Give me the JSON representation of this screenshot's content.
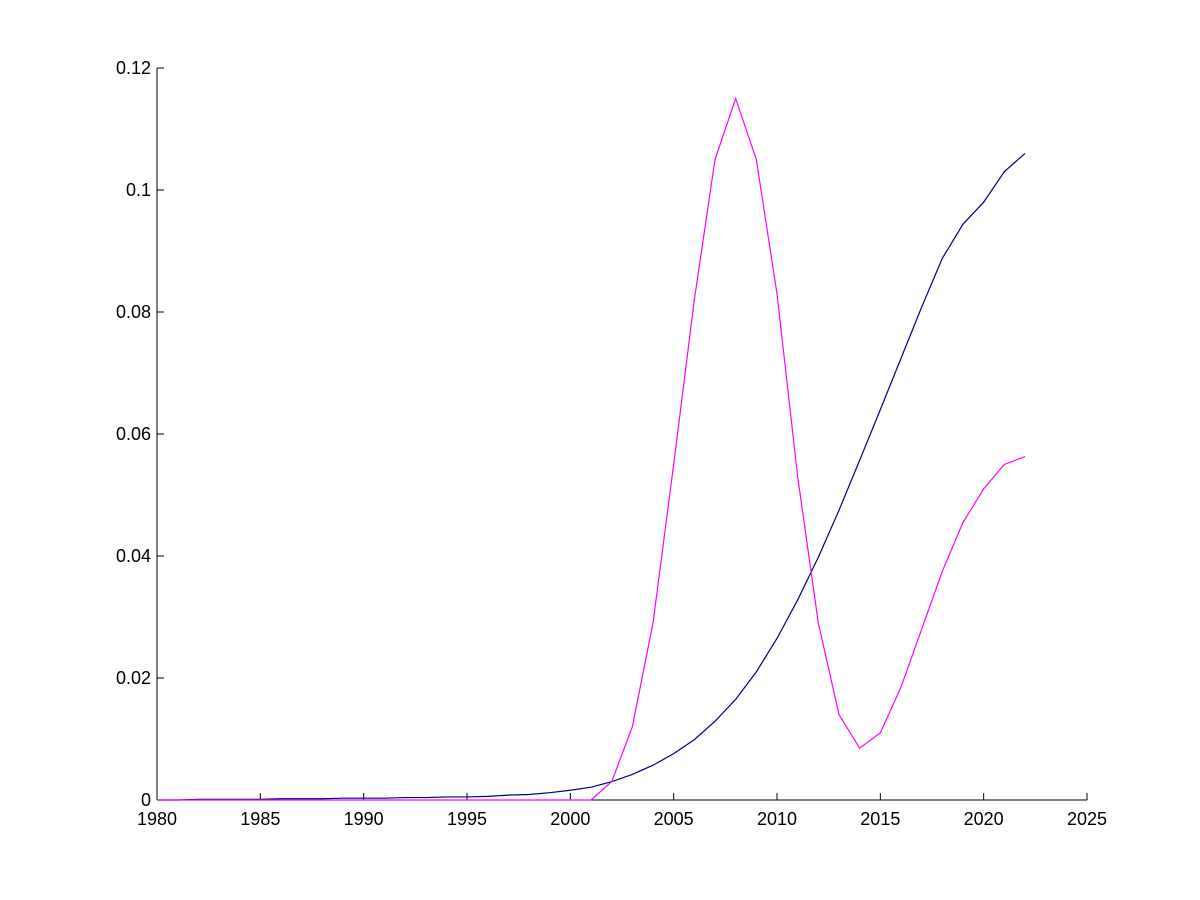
{
  "chart_data": {
    "type": "line",
    "x": [
      1980,
      1981,
      1982,
      1983,
      1984,
      1985,
      1986,
      1987,
      1988,
      1989,
      1990,
      1991,
      1992,
      1993,
      1994,
      1995,
      1996,
      1997,
      1998,
      1999,
      2000,
      2001,
      2002,
      2003,
      2004,
      2005,
      2006,
      2007,
      2008,
      2009,
      2010,
      2011,
      2012,
      2013,
      2014,
      2015,
      2016,
      2017,
      2018,
      2019,
      2020,
      2021,
      2022
    ],
    "series": [
      {
        "color": "#00007f",
        "values": [
          0,
          0,
          0.0001,
          0.0001,
          0.0001,
          0.0001,
          0.0002,
          0.0002,
          0.0002,
          0.0003,
          0.0003,
          0.0003,
          0.0004,
          0.0004,
          0.0005,
          0.0005,
          0.0006,
          0.0008,
          0.0009,
          0.0012,
          0.0016,
          0.0021,
          0.003,
          0.0042,
          0.0057,
          0.0076,
          0.0099,
          0.0129,
          0.0165,
          0.021,
          0.0265,
          0.0328,
          0.0398,
          0.0475,
          0.0557,
          0.064,
          0.0724,
          0.0808,
          0.0888,
          0.0944,
          0.098,
          0.103,
          0.106
        ]
      },
      {
        "color": "#ff00ff",
        "values": [
          0,
          0,
          0,
          0,
          0,
          0,
          0,
          0,
          0,
          0,
          0,
          0,
          0,
          0,
          0,
          0,
          0,
          0,
          0,
          0,
          0,
          0,
          0.003,
          0.012,
          0.029,
          0.055,
          0.082,
          0.105,
          0.115,
          0.105,
          0.083,
          0.053,
          0.029,
          0.014,
          0.0085,
          0.011,
          0.0185,
          0.028,
          0.0375,
          0.0455,
          0.051,
          0.055,
          0.0563
        ]
      }
    ],
    "xlim": [
      1980,
      2025
    ],
    "xticks": [
      1980,
      1985,
      1990,
      1995,
      2000,
      2005,
      2010,
      2015,
      2020,
      2025
    ],
    "ylim": [
      0,
      0.12
    ],
    "yticks": [
      0,
      0.02,
      0.04,
      0.06,
      0.08,
      0.1,
      0.12
    ]
  }
}
